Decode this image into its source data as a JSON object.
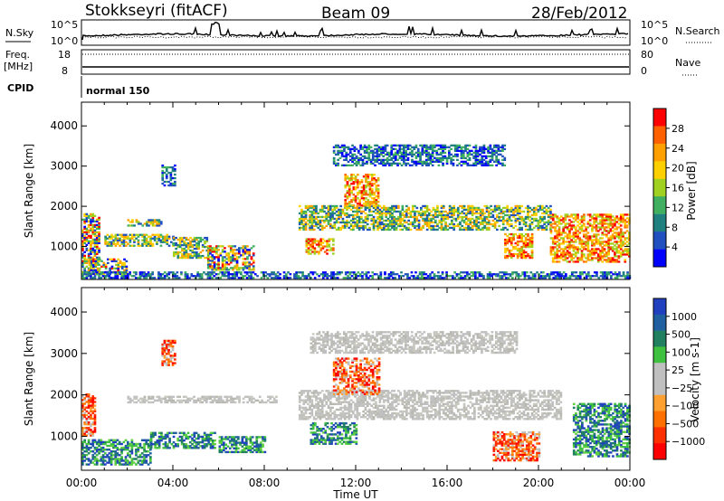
{
  "header": {
    "station": "Stokkseyri (fitACF)",
    "beam": "Beam 09",
    "date": "28/Feb/2012"
  },
  "panels": {
    "nsky_label": "N.Sky",
    "nsky_ticks": [
      "10^5",
      "10^0"
    ],
    "nsearch_label": "N.Search",
    "nsearch_ticks": [
      "10^5",
      "10^0"
    ],
    "freq_label_1": "Freq.",
    "freq_label_2": "[MHz]",
    "freq_ticks": [
      "18",
      "8"
    ],
    "nave_label": "Nave",
    "nave_ticks": [
      "80",
      "0"
    ],
    "cpid_label": "CPID",
    "cpid_value": "normal 150"
  },
  "chart_data": [
    {
      "type": "heatmap",
      "name": "power",
      "ylabel": "Slant Range [km]",
      "yticks": [
        1000,
        2000,
        3000,
        4000
      ],
      "ylim": [
        180,
        4590
      ],
      "colorbar_label": "Power [dB]",
      "colorbar_ticks": [
        "28",
        "24",
        "20",
        "16",
        "12",
        "8",
        "4"
      ],
      "colorbar_colors": [
        "#ff0000",
        "#ff6000",
        "#ffa000",
        "#ffd000",
        "#a0d020",
        "#40b060",
        "#208080",
        "#2050c0",
        "#0000ff"
      ],
      "regions": [
        {
          "t0": 0.0,
          "t1": 0.8,
          "r0": 300,
          "r1": 1800,
          "level": "mixed"
        },
        {
          "t0": 0.3,
          "t1": 2.0,
          "r0": 300,
          "r1": 700,
          "level": "mixed"
        },
        {
          "t0": 1.0,
          "t1": 4.0,
          "r0": 1000,
          "r1": 1300,
          "level": "mid"
        },
        {
          "t0": 2.0,
          "t1": 3.5,
          "r0": 1500,
          "r1": 1650,
          "level": "mid"
        },
        {
          "t0": 3.5,
          "t1": 4.1,
          "r0": 2500,
          "r1": 3000,
          "level": "low"
        },
        {
          "t0": 4.0,
          "t1": 5.5,
          "r0": 700,
          "r1": 1200,
          "level": "mid"
        },
        {
          "t0": 5.5,
          "t1": 7.5,
          "r0": 400,
          "r1": 1000,
          "level": "mixed"
        },
        {
          "t0": 9.8,
          "t1": 11.0,
          "r0": 800,
          "r1": 1200,
          "level": "high"
        },
        {
          "t0": 9.5,
          "t1": 20.5,
          "r0": 1400,
          "r1": 2000,
          "level": "mid"
        },
        {
          "t0": 11.5,
          "t1": 13.0,
          "r0": 2000,
          "r1": 2800,
          "level": "high"
        },
        {
          "t0": 11.0,
          "t1": 18.5,
          "r0": 3000,
          "r1": 3500,
          "level": "low"
        },
        {
          "t0": 18.5,
          "t1": 19.7,
          "r0": 700,
          "r1": 1300,
          "level": "high"
        },
        {
          "t0": 20.5,
          "t1": 24.0,
          "r0": 600,
          "r1": 1800,
          "level": "high"
        },
        {
          "t0": 0.0,
          "t1": 24.0,
          "r0": 200,
          "r1": 350,
          "level": "low"
        }
      ]
    },
    {
      "type": "heatmap",
      "name": "velocity",
      "ylabel": "Slant Range [km]",
      "yticks": [
        1000,
        2000,
        3000,
        4000
      ],
      "ylim": [
        180,
        4590
      ],
      "colorbar_label": "Velocity [m s-1]",
      "colorbar_ticks": [
        "1000",
        "500",
        "100",
        "25",
        "−25",
        "−100",
        "−500",
        "−1000"
      ],
      "colorbar_colors": [
        "#2040c0",
        "#2060a0",
        "#208060",
        "#40c040",
        "#c0c0c0",
        "#c0c0c0",
        "#ffa030",
        "#ff7000",
        "#ff3000",
        "#ff0000"
      ],
      "regions": [
        {
          "t0": 0.0,
          "t1": 0.6,
          "r0": 1000,
          "r1": 2000,
          "level": "neg"
        },
        {
          "t0": 0.0,
          "t1": 3.0,
          "r0": 300,
          "r1": 900,
          "level": "pos"
        },
        {
          "t0": 2.0,
          "t1": 8.5,
          "r0": 1800,
          "r1": 1950,
          "level": "zero"
        },
        {
          "t0": 3.5,
          "t1": 4.1,
          "r0": 2700,
          "r1": 3300,
          "level": "neg"
        },
        {
          "t0": 3.0,
          "t1": 5.8,
          "r0": 700,
          "r1": 1100,
          "level": "pos"
        },
        {
          "t0": 6.0,
          "t1": 8.0,
          "r0": 600,
          "r1": 1000,
          "level": "pos"
        },
        {
          "t0": 9.5,
          "t1": 21.0,
          "r0": 1400,
          "r1": 2100,
          "level": "zero"
        },
        {
          "t0": 10.0,
          "t1": 19.0,
          "r0": 3000,
          "r1": 3500,
          "level": "zero"
        },
        {
          "t0": 11.0,
          "t1": 13.0,
          "r0": 2000,
          "r1": 2900,
          "level": "neg"
        },
        {
          "t0": 10.0,
          "t1": 12.0,
          "r0": 800,
          "r1": 1300,
          "level": "pos"
        },
        {
          "t0": 18.0,
          "t1": 20.0,
          "r0": 400,
          "r1": 1100,
          "level": "neg"
        },
        {
          "t0": 21.5,
          "t1": 24.0,
          "r0": 500,
          "r1": 1800,
          "level": "pos"
        }
      ]
    }
  ],
  "xaxis": {
    "label": "Time UT",
    "ticks": [
      "00:00",
      "04:00",
      "08:00",
      "12:00",
      "16:00",
      "20:00",
      "00:00"
    ]
  }
}
